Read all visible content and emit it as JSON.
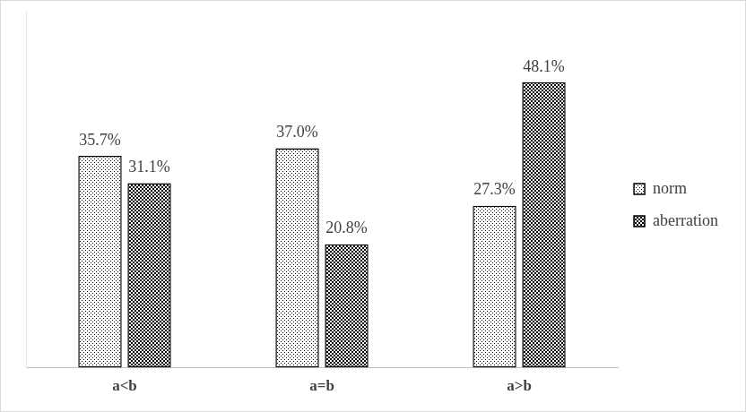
{
  "chart_data": {
    "type": "bar",
    "categories": [
      "a<b",
      "a=b",
      "a>b"
    ],
    "series": [
      {
        "name": "norm",
        "color": "#000000",
        "values": [
          35.7,
          37.0,
          27.3
        ],
        "value_labels": [
          "35.7%",
          "37.0%",
          "27.3%"
        ]
      },
      {
        "name": "aberration",
        "color": "#000000",
        "values": [
          31.1,
          20.8,
          48.1
        ],
        "value_labels": [
          "31.1%",
          "20.8%",
          "48.1%"
        ]
      }
    ],
    "ylim": [
      0,
      60
    ],
    "grid": false,
    "legend": "right",
    "data_labels": true,
    "tick_labels": "x"
  }
}
